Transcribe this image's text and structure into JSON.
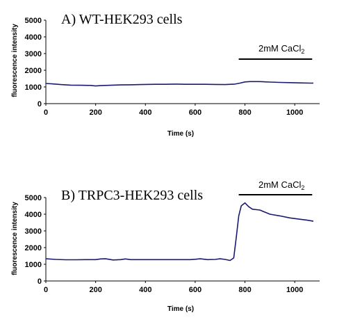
{
  "chart_data": [
    {
      "type": "line",
      "title": "A) WT-HEK293 cells",
      "xlabel": "Time (s)",
      "ylabel": "fluorescence intensity",
      "xlim": [
        0,
        1100
      ],
      "ylim": [
        0,
        5000
      ],
      "x_ticks": [
        "0",
        "200",
        "400",
        "600",
        "800",
        "1000"
      ],
      "y_ticks": [
        "0",
        "1000",
        "2000",
        "3000",
        "4000",
        "5000"
      ],
      "color": "#1a1a6e",
      "treatment": {
        "label_prefix": "2mM CaCl",
        "label_sub": "2",
        "x_start": 775,
        "x_end": 1070
      },
      "series": [
        {
          "x": [
            0,
            30,
            60,
            100,
            140,
            180,
            200,
            220,
            260,
            300,
            340,
            380,
            400,
            440,
            480,
            520,
            560,
            600,
            640,
            680,
            720,
            760,
            780,
            800,
            820,
            860,
            900,
            940,
            980,
            1020,
            1060,
            1075
          ],
          "y": [
            1210,
            1180,
            1140,
            1110,
            1100,
            1090,
            1060,
            1080,
            1100,
            1120,
            1130,
            1140,
            1150,
            1160,
            1160,
            1170,
            1160,
            1160,
            1160,
            1150,
            1140,
            1170,
            1230,
            1300,
            1320,
            1320,
            1290,
            1270,
            1260,
            1240,
            1230,
            1230
          ]
        }
      ]
    },
    {
      "type": "line",
      "title": "B) TRPC3-HEK293 cells",
      "xlabel": "Time (s)",
      "ylabel": "fluorescence intensity",
      "xlim": [
        0,
        1100
      ],
      "ylim": [
        0,
        5000
      ],
      "x_ticks": [
        "0",
        "200",
        "400",
        "600",
        "800",
        "1000"
      ],
      "y_ticks": [
        "0",
        "1000",
        "2000",
        "3000",
        "4000",
        "5000"
      ],
      "color": "#1a1a6e",
      "treatment": {
        "label_prefix": "2mM CaCl",
        "label_sub": "2",
        "x_start": 775,
        "x_end": 1070
      },
      "series": [
        {
          "x": [
            0,
            40,
            80,
            120,
            160,
            200,
            220,
            240,
            270,
            300,
            320,
            340,
            380,
            420,
            460,
            500,
            540,
            580,
            600,
            620,
            650,
            680,
            700,
            720,
            740,
            755,
            765,
            775,
            785,
            800,
            815,
            830,
            860,
            900,
            940,
            980,
            1020,
            1050,
            1075
          ],
          "y": [
            1330,
            1290,
            1270,
            1270,
            1280,
            1280,
            1320,
            1330,
            1260,
            1280,
            1320,
            1280,
            1280,
            1280,
            1280,
            1280,
            1280,
            1280,
            1300,
            1330,
            1280,
            1290,
            1330,
            1290,
            1230,
            1380,
            2600,
            3900,
            4500,
            4680,
            4450,
            4300,
            4250,
            4000,
            3900,
            3780,
            3700,
            3640,
            3580
          ]
        }
      ]
    }
  ]
}
